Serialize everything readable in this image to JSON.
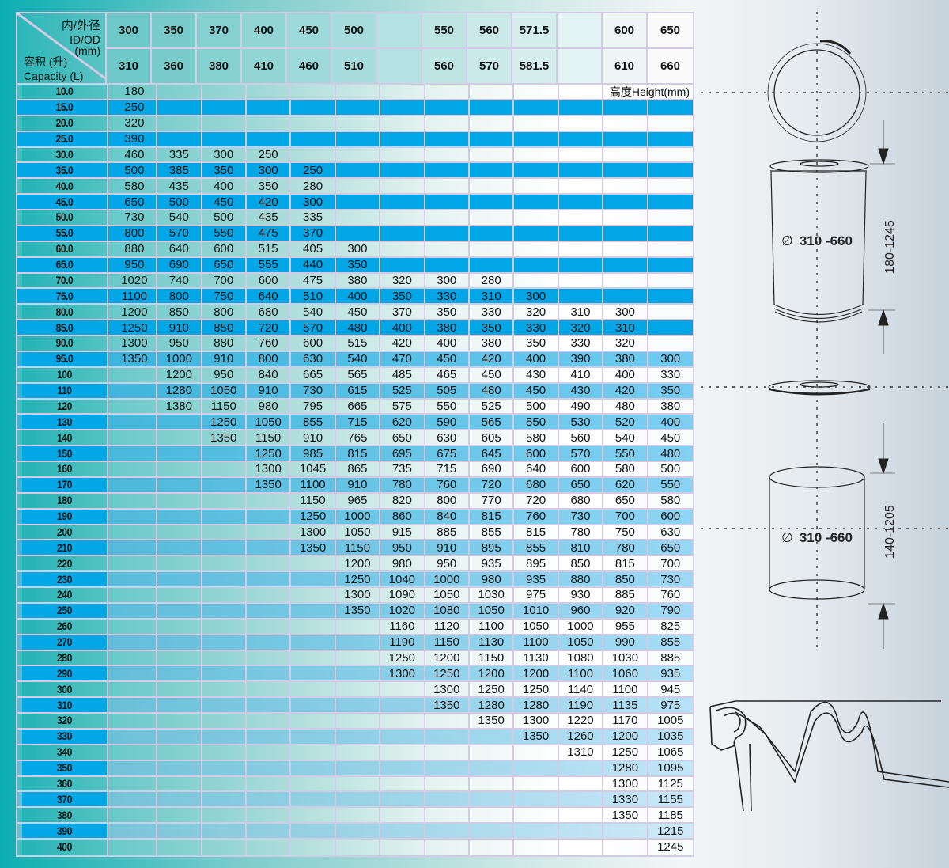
{
  "header": {
    "id_od_cn": "内/外径",
    "id_od_en": "ID/OD",
    "unit": "(mm)",
    "capacity_cn": "容积 (升)",
    "capacity_en": "Capacity (L)",
    "columns": [
      {
        "id": "300",
        "od": "310"
      },
      {
        "id": "350",
        "od": "360"
      },
      {
        "id": "370",
        "od": "380"
      },
      {
        "id": "400",
        "od": "410"
      },
      {
        "id": "450",
        "od": "460"
      },
      {
        "id": "500",
        "od": "510"
      },
      {
        "id": "",
        "od": ""
      },
      {
        "id": "550",
        "od": "560"
      },
      {
        "id": "560",
        "od": "570"
      },
      {
        "id": "571.5",
        "od": "581.5"
      },
      {
        "id": "",
        "od": ""
      },
      {
        "id": "600",
        "od": "610"
      },
      {
        "id": "650",
        "od": "660"
      }
    ]
  },
  "height_label": "高度Height(mm)",
  "rows": [
    {
      "cap": "10.0",
      "v": [
        "180"
      ]
    },
    {
      "cap": "15.0",
      "v": [
        "250"
      ]
    },
    {
      "cap": "20.0",
      "v": [
        "320"
      ]
    },
    {
      "cap": "25.0",
      "v": [
        "390"
      ]
    },
    {
      "cap": "30.0",
      "v": [
        "460",
        "335",
        "300",
        "250"
      ]
    },
    {
      "cap": "35.0",
      "v": [
        "500",
        "385",
        "350",
        "300",
        "250"
      ]
    },
    {
      "cap": "40.0",
      "v": [
        "580",
        "435",
        "400",
        "350",
        "280"
      ]
    },
    {
      "cap": "45.0",
      "v": [
        "650",
        "500",
        "450",
        "420",
        "300"
      ]
    },
    {
      "cap": "50.0",
      "v": [
        "730",
        "540",
        "500",
        "435",
        "335"
      ]
    },
    {
      "cap": "55.0",
      "v": [
        "800",
        "570",
        "550",
        "475",
        "370"
      ]
    },
    {
      "cap": "60.0",
      "v": [
        "880",
        "640",
        "600",
        "515",
        "405",
        "300"
      ]
    },
    {
      "cap": "65.0",
      "v": [
        "950",
        "690",
        "650",
        "555",
        "440",
        "350"
      ]
    },
    {
      "cap": "70.0",
      "v": [
        "1020",
        "740",
        "700",
        "600",
        "475",
        "380",
        "320",
        "300",
        "280"
      ]
    },
    {
      "cap": "75.0",
      "v": [
        "1100",
        "800",
        "750",
        "640",
        "510",
        "400",
        "350",
        "330",
        "310",
        "300"
      ]
    },
    {
      "cap": "80.0",
      "v": [
        "1200",
        "850",
        "800",
        "680",
        "540",
        "450",
        "370",
        "350",
        "330",
        "320",
        "310",
        "300"
      ]
    },
    {
      "cap": "85.0",
      "v": [
        "1250",
        "910",
        "850",
        "720",
        "570",
        "480",
        "400",
        "380",
        "350",
        "330",
        "320",
        "310"
      ]
    },
    {
      "cap": "90.0",
      "v": [
        "1300",
        "950",
        "880",
        "760",
        "600",
        "515",
        "420",
        "400",
        "380",
        "350",
        "330",
        "320"
      ]
    },
    {
      "cap": "95.0",
      "v": [
        "1350",
        "1000",
        "910",
        "800",
        "630",
        "540",
        "470",
        "450",
        "420",
        "400",
        "390",
        "380",
        "300"
      ]
    },
    {
      "cap": "100",
      "v": [
        "",
        "1200",
        "950",
        "840",
        "665",
        "565",
        "485",
        "465",
        "450",
        "430",
        "410",
        "400",
        "330"
      ]
    },
    {
      "cap": "110",
      "v": [
        "",
        "1280",
        "1050",
        "910",
        "730",
        "615",
        "525",
        "505",
        "480",
        "450",
        "430",
        "420",
        "350"
      ]
    },
    {
      "cap": "120",
      "v": [
        "",
        "1380",
        "1150",
        "980",
        "795",
        "665",
        "575",
        "550",
        "525",
        "500",
        "490",
        "480",
        "380"
      ]
    },
    {
      "cap": "130",
      "v": [
        "",
        "",
        "1250",
        "1050",
        "855",
        "715",
        "620",
        "590",
        "565",
        "550",
        "530",
        "520",
        "400"
      ]
    },
    {
      "cap": "140",
      "v": [
        "",
        "",
        "1350",
        "1150",
        "910",
        "765",
        "650",
        "630",
        "605",
        "580",
        "560",
        "540",
        "450"
      ]
    },
    {
      "cap": "150",
      "v": [
        "",
        "",
        "",
        "1250",
        "985",
        "815",
        "695",
        "675",
        "645",
        "600",
        "570",
        "550",
        "480"
      ]
    },
    {
      "cap": "160",
      "v": [
        "",
        "",
        "",
        "1300",
        "1045",
        "865",
        "735",
        "715",
        "690",
        "640",
        "600",
        "580",
        "500"
      ]
    },
    {
      "cap": "170",
      "v": [
        "",
        "",
        "",
        "1350",
        "1100",
        "910",
        "780",
        "760",
        "720",
        "680",
        "650",
        "620",
        "550"
      ]
    },
    {
      "cap": "180",
      "v": [
        "",
        "",
        "",
        "",
        "1150",
        "965",
        "820",
        "800",
        "770",
        "720",
        "680",
        "650",
        "580"
      ]
    },
    {
      "cap": "190",
      "v": [
        "",
        "",
        "",
        "",
        "1250",
        "1000",
        "860",
        "840",
        "815",
        "760",
        "730",
        "700",
        "600"
      ]
    },
    {
      "cap": "200",
      "v": [
        "",
        "",
        "",
        "",
        "1300",
        "1050",
        "915",
        "885",
        "855",
        "815",
        "780",
        "750",
        "630"
      ]
    },
    {
      "cap": "210",
      "v": [
        "",
        "",
        "",
        "",
        "1350",
        "1150",
        "950",
        "910",
        "895",
        "855",
        "810",
        "780",
        "650"
      ]
    },
    {
      "cap": "220",
      "v": [
        "",
        "",
        "",
        "",
        "",
        "1200",
        "980",
        "950",
        "935",
        "895",
        "850",
        "815",
        "700"
      ]
    },
    {
      "cap": "230",
      "v": [
        "",
        "",
        "",
        "",
        "",
        "1250",
        "1040",
        "1000",
        "980",
        "935",
        "880",
        "850",
        "730"
      ]
    },
    {
      "cap": "240",
      "v": [
        "",
        "",
        "",
        "",
        "",
        "1300",
        "1090",
        "1050",
        "1030",
        "975",
        "930",
        "885",
        "760"
      ]
    },
    {
      "cap": "250",
      "v": [
        "",
        "",
        "",
        "",
        "",
        "1350",
        "1020",
        "1080",
        "1050",
        "1010",
        "960",
        "920",
        "790"
      ]
    },
    {
      "cap": "260",
      "v": [
        "",
        "",
        "",
        "",
        "",
        "",
        "1160",
        "1120",
        "1100",
        "1050",
        "1000",
        "955",
        "825"
      ]
    },
    {
      "cap": "270",
      "v": [
        "",
        "",
        "",
        "",
        "",
        "",
        "1190",
        "1150",
        "1130",
        "1100",
        "1050",
        "990",
        "855"
      ]
    },
    {
      "cap": "280",
      "v": [
        "",
        "",
        "",
        "",
        "",
        "",
        "1250",
        "1200",
        "1150",
        "1130",
        "1080",
        "1030",
        "885"
      ]
    },
    {
      "cap": "290",
      "v": [
        "",
        "",
        "",
        "",
        "",
        "",
        "1300",
        "1250",
        "1200",
        "1200",
        "1100",
        "1060",
        "935"
      ]
    },
    {
      "cap": "300",
      "v": [
        "",
        "",
        "",
        "",
        "",
        "",
        "",
        "1300",
        "1250",
        "1250",
        "1140",
        "1100",
        "945"
      ]
    },
    {
      "cap": "310",
      "v": [
        "",
        "",
        "",
        "",
        "",
        "",
        "",
        "1350",
        "1280",
        "1280",
        "1190",
        "1135",
        "975"
      ]
    },
    {
      "cap": "320",
      "v": [
        "",
        "",
        "",
        "",
        "",
        "",
        "",
        "",
        "1350",
        "1300",
        "1220",
        "1170",
        "1005"
      ]
    },
    {
      "cap": "330",
      "v": [
        "",
        "",
        "",
        "",
        "",
        "",
        "",
        "",
        "",
        "1350",
        "1260",
        "1200",
        "1035"
      ]
    },
    {
      "cap": "340",
      "v": [
        "",
        "",
        "",
        "",
        "",
        "",
        "",
        "",
        "",
        "",
        "1310",
        "1250",
        "1065"
      ]
    },
    {
      "cap": "350",
      "v": [
        "",
        "",
        "",
        "",
        "",
        "",
        "",
        "",
        "",
        "",
        "",
        "1280",
        "1095"
      ]
    },
    {
      "cap": "360",
      "v": [
        "",
        "",
        "",
        "",
        "",
        "",
        "",
        "",
        "",
        "",
        "",
        "1300",
        "1125"
      ]
    },
    {
      "cap": "370",
      "v": [
        "",
        "",
        "",
        "",
        "",
        "",
        "",
        "",
        "",
        "",
        "",
        "1330",
        "1155"
      ]
    },
    {
      "cap": "380",
      "v": [
        "",
        "",
        "",
        "",
        "",
        "",
        "",
        "",
        "",
        "",
        "",
        "1350",
        "1185"
      ]
    },
    {
      "cap": "390",
      "v": [
        "",
        "",
        "",
        "",
        "",
        "",
        "",
        "",
        "",
        "",
        "",
        "",
        "1215"
      ]
    },
    {
      "cap": "400",
      "v": [
        "",
        "",
        "",
        "",
        "",
        "",
        "",
        "",
        "",
        "",
        "",
        "",
        "1245"
      ]
    }
  ],
  "drum": {
    "diameter_symbol": "∅",
    "diameter": "310 -660",
    "height_range": "180-1245"
  },
  "liner": {
    "diameter_symbol": "∅",
    "diameter": "310 -660",
    "height_range": "140-1205"
  },
  "colors": {
    "blue_row": "#00a6e6",
    "grid_line": "#d3cbe5",
    "teal": "#0aaeb2"
  }
}
